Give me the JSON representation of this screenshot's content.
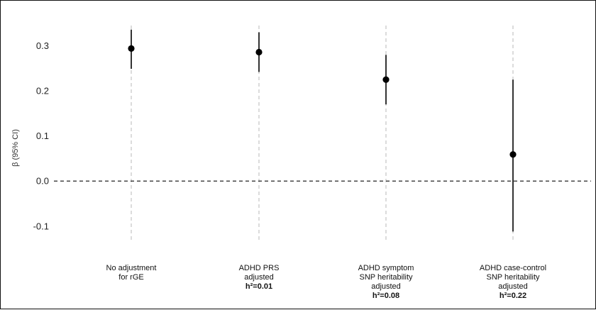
{
  "chart_data": {
    "type": "scatter",
    "subtype": "point-with-error-bars",
    "title": "",
    "xlabel": "",
    "ylabel": "β (95% CI)",
    "ylim": [
      -0.135,
      0.345
    ],
    "yticks": [
      0.3,
      0.2,
      0.1,
      0.0,
      -0.1
    ],
    "ytick_labels": [
      "0.3",
      "0.2",
      "0.1",
      "0.0",
      "-0.1"
    ],
    "reference_line": 0.0,
    "grid": "vertical dashed lines at each category",
    "legend": "none",
    "categories": [
      {
        "lines": [
          "No adjustment",
          "for rGE"
        ],
        "h2": "",
        "estimate": 0.294,
        "ci_lower": 0.249,
        "ci_upper": 0.336
      },
      {
        "lines": [
          "ADHD PRS",
          "adjusted"
        ],
        "h2": "h²=0.01",
        "estimate": 0.286,
        "ci_lower": 0.242,
        "ci_upper": 0.33
      },
      {
        "lines": [
          "ADHD symptom",
          "SNP heritability",
          "adjusted"
        ],
        "h2": "h²=0.08",
        "estimate": 0.225,
        "ci_lower": 0.17,
        "ci_upper": 0.28
      },
      {
        "lines": [
          "ADHD case-control",
          "SNP heritability",
          "adjusted"
        ],
        "h2": "h²=0.22",
        "estimate": 0.059,
        "ci_lower": -0.112,
        "ci_upper": 0.225
      }
    ],
    "colors": {
      "point": "#000000",
      "errorbar": "#333333",
      "gridline": "#c8c8c8",
      "reference_line": "#222222"
    }
  }
}
